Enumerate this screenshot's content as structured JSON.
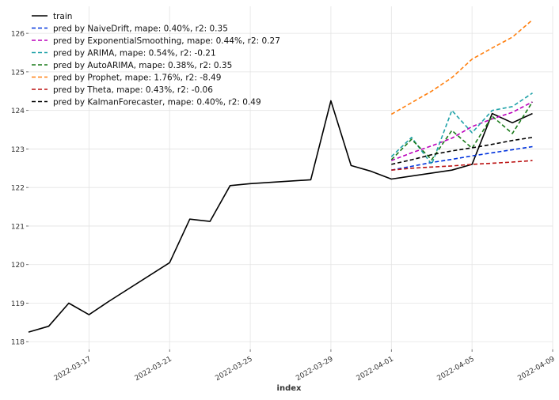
{
  "chart_data": {
    "type": "line",
    "xlabel": "index",
    "ylabel": "",
    "ylim": [
      117.8,
      126.7
    ],
    "xlim": [
      "2022-03-14",
      "2022-04-09"
    ],
    "grid": true,
    "legend_position": "top-left",
    "y_ticks": [
      118,
      119,
      120,
      121,
      122,
      123,
      124,
      125,
      126
    ],
    "x_ticks": [
      "2022-03-17",
      "2022-03-21",
      "2022-03-25",
      "2022-03-29",
      "2022-04-01",
      "2022-04-05",
      "2022-04-09"
    ],
    "series": [
      {
        "name": "train",
        "color": "#000000",
        "dash": "solid",
        "x": [
          "2022-03-14",
          "2022-03-15",
          "2022-03-16",
          "2022-03-17",
          "2022-03-18",
          "2022-03-21",
          "2022-03-22",
          "2022-03-23",
          "2022-03-24",
          "2022-03-25",
          "2022-03-28",
          "2022-03-29",
          "2022-03-30",
          "2022-03-31",
          "2022-04-01",
          "2022-04-04",
          "2022-04-05",
          "2022-04-06",
          "2022-04-07",
          "2022-04-08"
        ],
        "values": [
          118.25,
          118.4,
          119.0,
          118.7,
          119.05,
          120.05,
          121.18,
          121.12,
          122.05,
          122.1,
          122.2,
          124.25,
          122.57,
          122.42,
          122.22,
          122.45,
          122.6,
          123.92,
          123.68,
          123.92
        ]
      },
      {
        "name": "pred by NaiveDrift, mape: 0.40%, r2: 0.35",
        "color": "#0033dd",
        "dash": "dashed",
        "x": [
          "2022-04-01",
          "2022-04-02",
          "2022-04-03",
          "2022-04-04",
          "2022-04-05",
          "2022-04-06",
          "2022-04-07",
          "2022-04-08"
        ],
        "values": [
          122.45,
          122.55,
          122.65,
          122.73,
          122.82,
          122.9,
          122.98,
          123.06
        ]
      },
      {
        "name": "pred by ExponentialSmoothing, mape: 0.44%, r2: 0.27",
        "color": "#bb00bb",
        "dash": "dashed",
        "x": [
          "2022-04-01",
          "2022-04-02",
          "2022-04-03",
          "2022-04-04",
          "2022-04-05",
          "2022-04-06",
          "2022-04-07",
          "2022-04-08"
        ],
        "values": [
          122.7,
          122.9,
          123.08,
          123.28,
          123.58,
          123.78,
          123.95,
          124.22
        ]
      },
      {
        "name": "pred by ARIMA, mape: 0.54%, r2: -0.21",
        "color": "#1fa2a8",
        "dash": "dashed",
        "x": [
          "2022-04-01",
          "2022-04-02",
          "2022-04-03",
          "2022-04-04",
          "2022-04-05",
          "2022-04-06",
          "2022-04-07",
          "2022-04-08"
        ],
        "values": [
          122.8,
          123.3,
          122.6,
          124.0,
          123.42,
          124.0,
          124.1,
          124.45
        ]
      },
      {
        "name": "pred by AutoARIMA, mape: 0.38%, r2: 0.35",
        "color": "#1a7a1a",
        "dash": "dashed",
        "x": [
          "2022-04-01",
          "2022-04-02",
          "2022-04-03",
          "2022-04-04",
          "2022-04-05",
          "2022-04-06",
          "2022-04-07",
          "2022-04-08"
        ],
        "values": [
          122.72,
          123.25,
          122.72,
          123.48,
          123.02,
          123.85,
          123.4,
          124.22
        ]
      },
      {
        "name": "pred by Prophet, mape: 1.76%, r2: -8.49",
        "color": "#ff7f0e",
        "dash": "dashed",
        "x": [
          "2022-04-01",
          "2022-04-02",
          "2022-04-03",
          "2022-04-04",
          "2022-04-05",
          "2022-04-06",
          "2022-04-07",
          "2022-04-08"
        ],
        "values": [
          123.9,
          124.2,
          124.5,
          124.85,
          125.33,
          125.62,
          125.9,
          126.35
        ]
      },
      {
        "name": "pred by Theta, mape: 0.43%, r2: -0.06",
        "color": "#bb1111",
        "dash": "dashed",
        "x": [
          "2022-04-01",
          "2022-04-02",
          "2022-04-03",
          "2022-04-04",
          "2022-04-05",
          "2022-04-06",
          "2022-04-07",
          "2022-04-08"
        ],
        "values": [
          122.45,
          122.5,
          122.53,
          122.56,
          122.6,
          122.63,
          122.66,
          122.7
        ]
      },
      {
        "name": "pred by KalmanForecaster, mape: 0.40%, r2: 0.49",
        "color": "#000000",
        "dash": "dashed",
        "x": [
          "2022-04-01",
          "2022-04-02",
          "2022-04-03",
          "2022-04-04",
          "2022-04-05",
          "2022-04-06",
          "2022-04-07",
          "2022-04-08"
        ],
        "values": [
          122.6,
          122.72,
          122.85,
          122.95,
          123.03,
          123.12,
          123.22,
          123.3
        ]
      }
    ]
  }
}
